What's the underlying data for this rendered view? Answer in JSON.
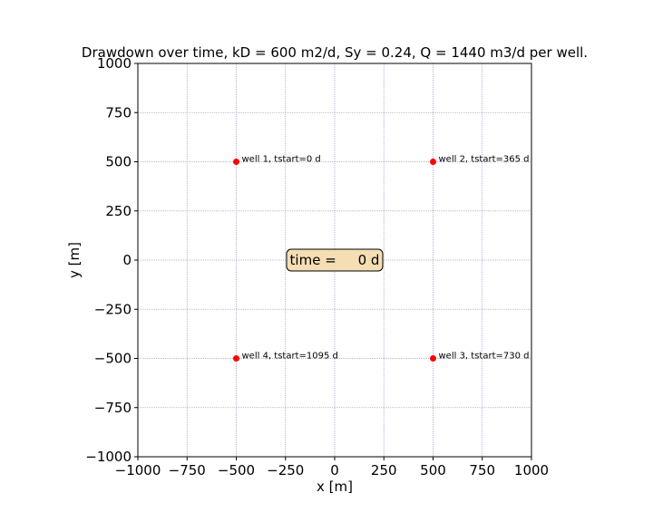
{
  "chart_data": {
    "type": "scatter",
    "title": "Drawdown over time, kD = 600 m2/d, Sy = 0.24, Q = 1440 m3/d per well.",
    "xlabel": "x [m]",
    "ylabel": "y [m]",
    "xlim": [
      -1000,
      1000
    ],
    "ylim": [
      -1000,
      1000
    ],
    "xticks": [
      -1000,
      -750,
      -500,
      -250,
      0,
      250,
      500,
      750,
      1000
    ],
    "yticks": [
      -1000,
      -750,
      -500,
      -250,
      0,
      250,
      500,
      750,
      1000
    ],
    "xtick_labels": [
      "−1000",
      "−750",
      "−500",
      "−250",
      "0",
      "250",
      "500",
      "750",
      "1000"
    ],
    "ytick_labels": [
      "−1000",
      "−750",
      "−500",
      "−250",
      "0",
      "250",
      "500",
      "750",
      "1000"
    ],
    "grid": true,
    "marker_color": "#ff0000",
    "points": [
      {
        "x": -500,
        "y": 500,
        "label": "well 1, tstart=0 d"
      },
      {
        "x": 500,
        "y": 500,
        "label": "well 2, tstart=365 d"
      },
      {
        "x": 500,
        "y": -500,
        "label": "well 3, tstart=730 d"
      },
      {
        "x": -500,
        "y": -500,
        "label": "well 4, tstart=1095 d"
      }
    ],
    "annotation": {
      "text": "time =     0 d",
      "x": 0,
      "y": 0,
      "background": "#f5deb3"
    }
  }
}
